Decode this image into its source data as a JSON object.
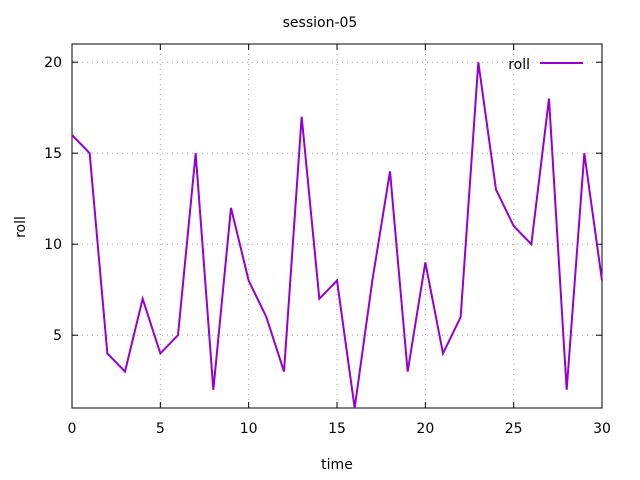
{
  "chart_data": {
    "type": "line",
    "title": "session-05",
    "xlabel": "time",
    "ylabel": "roll",
    "xlim": [
      0,
      30
    ],
    "ylim": [
      1,
      21
    ],
    "xticks": [
      0,
      5,
      10,
      15,
      20,
      25,
      30
    ],
    "yticks": [
      5,
      10,
      15,
      20
    ],
    "grid": true,
    "legend_position": "top-right",
    "series": [
      {
        "name": "roll",
        "color": "#9400d3",
        "x": [
          0,
          1,
          2,
          3,
          4,
          5,
          6,
          7,
          8,
          9,
          10,
          11,
          12,
          13,
          14,
          15,
          16,
          17,
          18,
          19,
          20,
          21,
          22,
          23,
          24,
          25,
          26,
          27,
          28,
          29,
          30
        ],
        "values": [
          16,
          15,
          4,
          3,
          7,
          4,
          5,
          15,
          2,
          12,
          8,
          6,
          3,
          17,
          7,
          8,
          1,
          8,
          14,
          3,
          9,
          4,
          6,
          20,
          13,
          11,
          10,
          18,
          2,
          15,
          8
        ]
      }
    ]
  }
}
